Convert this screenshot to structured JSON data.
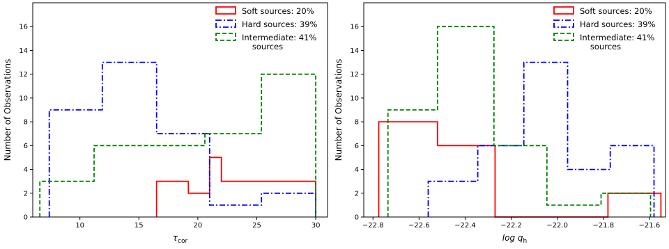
{
  "chart_data": [
    {
      "type": "histogram",
      "xlabel_main": "τ",
      "xlabel_sub": "cor",
      "ylabel": "Number of Observations",
      "xlim": [
        6,
        31
      ],
      "ylim": [
        0,
        18
      ],
      "xticks": [
        10,
        15,
        20,
        25,
        30
      ],
      "xtick_labels": [
        "10",
        "15",
        "20",
        "25",
        "30"
      ],
      "yticks": [
        0,
        2,
        4,
        6,
        8,
        10,
        12,
        14,
        16
      ],
      "ytick_labels": [
        "0",
        "2",
        "4",
        "6",
        "8",
        "10",
        "12",
        "14",
        "16"
      ],
      "legend_position": "top-right",
      "series": [
        {
          "label_lines": [
            "Soft sources: 20%"
          ],
          "color": "#ff0000",
          "dash": "solid",
          "edges": [
            16.5,
            19.2,
            21.0,
            22.0,
            24.6,
            30.0
          ],
          "counts": [
            3,
            2,
            5,
            3,
            3
          ]
        },
        {
          "label_lines": [
            "Hard sources: 39%"
          ],
          "color": "#0000ff",
          "dash": "dashdot",
          "edges": [
            7.4,
            11.9,
            16.5,
            21.0,
            25.4,
            30.0
          ],
          "counts": [
            9,
            13,
            7,
            1,
            2
          ]
        },
        {
          "label_lines": [
            "Intermediate: 41%",
            "sources"
          ],
          "color": "#008000",
          "dash": "dashed",
          "edges": [
            6.6,
            11.2,
            15.9,
            20.6,
            25.4,
            30.0
          ],
          "counts": [
            3,
            6,
            6,
            7,
            12
          ]
        }
      ]
    },
    {
      "type": "histogram",
      "xlabel_main": "log q",
      "xlabel_sub": "h",
      "ylabel": "Number of Observations",
      "xlim": [
        -22.84,
        -21.53
      ],
      "ylim": [
        0,
        18
      ],
      "xticks": [
        -22.8,
        -22.6,
        -22.4,
        -22.2,
        -22.0,
        -21.8,
        -21.6
      ],
      "xtick_labels": [
        "−22.8",
        "−22.6",
        "−22.4",
        "−22.2",
        "−22.0",
        "−21.8",
        "−21.6"
      ],
      "yticks": [
        0,
        2,
        4,
        6,
        8,
        10,
        12,
        14,
        16
      ],
      "ytick_labels": [
        "0",
        "2",
        "4",
        "6",
        "8",
        "10",
        "12",
        "14",
        "16"
      ],
      "legend_position": "top-right",
      "series": [
        {
          "label_lines": [
            "Soft sources: 20%"
          ],
          "color": "#ff0000",
          "dash": "solid",
          "edges": [
            -22.775,
            -22.52,
            -22.27,
            -21.78,
            -21.55
          ],
          "counts": [
            8,
            6,
            0,
            2
          ]
        },
        {
          "label_lines": [
            "Hard sources: 39%"
          ],
          "color": "#0000ff",
          "dash": "dashdot",
          "edges": [
            -22.56,
            -22.345,
            -22.145,
            -21.955,
            -21.77,
            -21.58
          ],
          "counts": [
            3,
            6,
            13,
            4,
            6
          ]
        },
        {
          "label_lines": [
            "Intermediate: 41%",
            "sources"
          ],
          "color": "#008000",
          "dash": "dashed",
          "edges": [
            -22.735,
            -22.52,
            -22.275,
            -22.045,
            -21.81,
            -21.595
          ],
          "counts": [
            9,
            16,
            6,
            1,
            2
          ]
        }
      ]
    }
  ]
}
